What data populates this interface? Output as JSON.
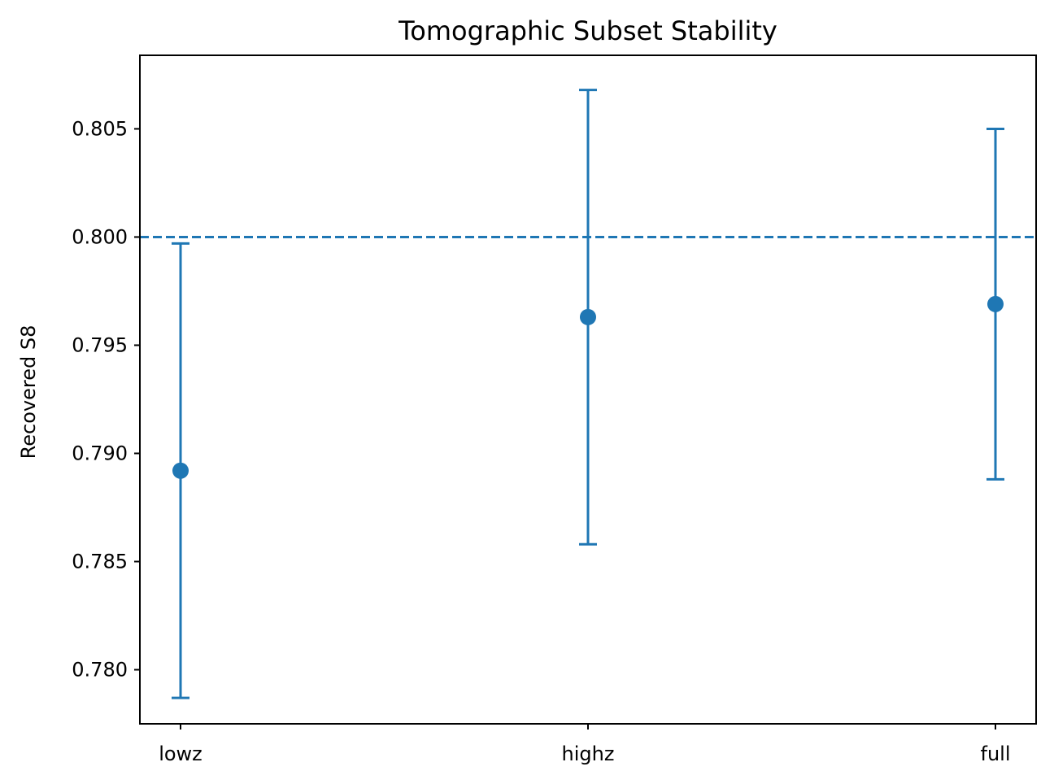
{
  "chart_data": {
    "type": "scatter",
    "title": "Tomographic Subset Stability",
    "xlabel": "",
    "ylabel": "Recovered S8",
    "categories": [
      "lowz",
      "highz",
      "full"
    ],
    "series": [
      {
        "values": [
          0.7892,
          0.7963,
          0.7969
        ],
        "errors": [
          0.0105,
          0.0105,
          0.0081
        ]
      }
    ],
    "reference_line": {
      "y": 0.8,
      "style": "dashed"
    },
    "ylim": [
      0.7775,
      0.8084
    ],
    "yticks": [
      "0.780",
      "0.785",
      "0.790",
      "0.795",
      "0.800",
      "0.805"
    ],
    "grid": false,
    "color": "#1f77b4"
  }
}
